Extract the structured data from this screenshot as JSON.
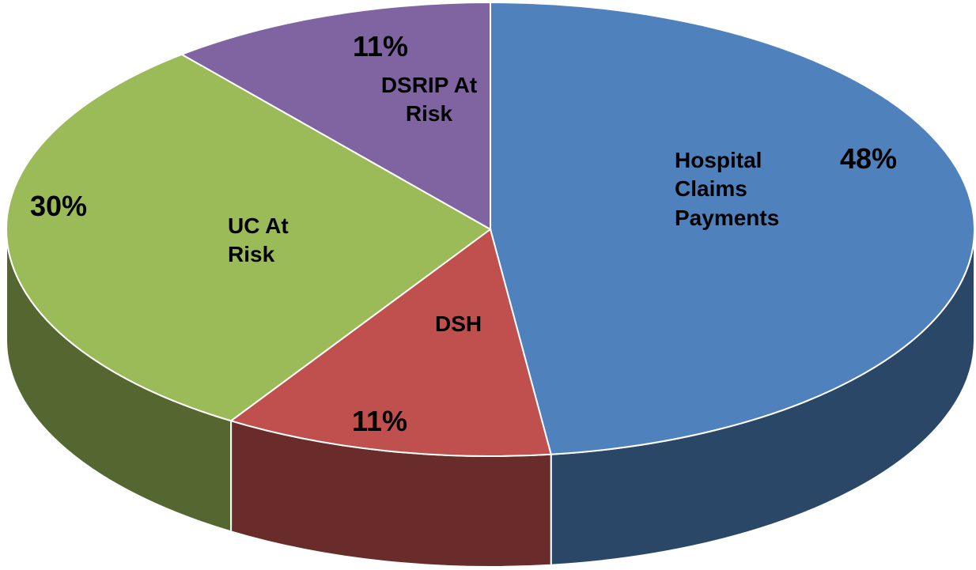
{
  "chart_data": {
    "type": "pie",
    "categories": [
      "Hospital Claims Payments",
      "DSH",
      "UC At Risk",
      "DSRIP At Risk"
    ],
    "values": [
      48,
      11,
      30,
      11
    ],
    "value_labels": [
      "48%",
      "11%",
      "30%",
      "11%"
    ],
    "colors": [
      "#4f81bd",
      "#c0504d",
      "#9bbb59",
      "#8064a2"
    ]
  }
}
